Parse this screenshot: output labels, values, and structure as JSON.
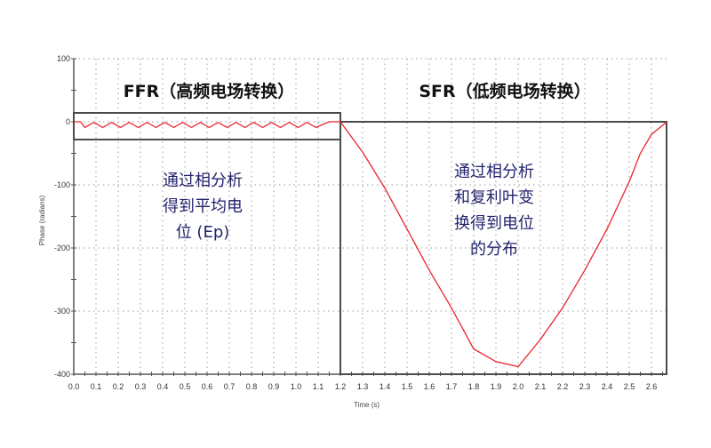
{
  "chart_data": {
    "type": "line",
    "title": "",
    "xlabel": "Time (s)",
    "ylabel": "Phase (radians)",
    "xlim": [
      0.0,
      2.67
    ],
    "ylim": [
      -400,
      100
    ],
    "grid": true,
    "x_ticks": [
      "0.0",
      "0.1",
      "0.2",
      "0.3",
      "0.4",
      "0.5",
      "0.6",
      "0.7",
      "0.8",
      "0.9",
      "1.0",
      "1.1",
      "1.2",
      "1.3",
      "1.4",
      "1.5",
      "1.6",
      "1.7",
      "1.8",
      "1.9",
      "2.0",
      "2.1",
      "2.2",
      "2.3",
      "2.4",
      "2.5",
      "2.6"
    ],
    "y_ticks": [
      "100",
      "0",
      "-100",
      "-200",
      "-300",
      "-400"
    ],
    "series": [
      {
        "name": "Phase",
        "color": "#e8242b",
        "x": [
          0.0,
          0.03,
          0.08,
          0.2,
          0.4,
          0.6,
          0.8,
          1.0,
          1.1,
          1.15,
          1.19,
          1.2,
          1.3,
          1.4,
          1.5,
          1.6,
          1.7,
          1.8,
          1.9,
          2.0,
          2.1,
          2.2,
          2.3,
          2.4,
          2.5,
          2.55,
          2.6,
          2.67
        ],
        "y": [
          0,
          0,
          -8,
          -8,
          -8,
          -8,
          -8,
          -8,
          -8,
          0,
          0,
          0,
          -48,
          -105,
          -170,
          -235,
          -295,
          -360,
          -380,
          -388,
          -345,
          -295,
          -235,
          -170,
          -95,
          -50,
          -20,
          0
        ],
        "note": "FFR region 0-1.2s oscillates as a sawtooth around approx -4 rad (amplitude ~5 rad)"
      }
    ],
    "annotations": [
      {
        "text": "FFR（高频电场转换）",
        "region": [
          0.0,
          1.2
        ]
      },
      {
        "text": "SFR（低频电场转换）",
        "region": [
          1.2,
          2.67
        ]
      },
      {
        "text": "通过相分析得到平均电位 (Ep)",
        "region": "FFR"
      },
      {
        "text": "通过相分析和复利叶变换得到电位的分布",
        "region": "SFR"
      }
    ]
  },
  "labels": {
    "xlabel": "Time (s)",
    "ylabel": "Phase (radians)",
    "ffr_title": "FFR（高频电场转换）",
    "sfr_title": "SFR（低频电场转换）",
    "ffr_note_lines": [
      "通过相分析",
      "得到平均电",
      "位 (Ep)"
    ],
    "sfr_note_lines": [
      "通过相分析",
      "和复利叶变",
      "换得到电位",
      "的分布"
    ]
  },
  "colors": {
    "curve": "#e8242b",
    "axis": "#555555",
    "box": "#4a4a4a",
    "grid": "#9a9a9a",
    "annotation": "#23236e"
  }
}
